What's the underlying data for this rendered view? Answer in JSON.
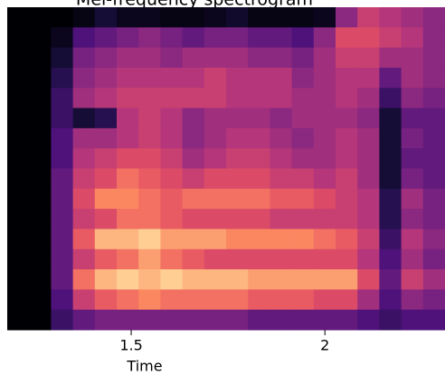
{
  "chart_data": {
    "type": "heatmap",
    "title": "Mel-frequency spectrogram",
    "xlabel": "Time",
    "xlim": [
      1.18,
      2.31
    ],
    "xticks": [
      1.5,
      2
    ],
    "colormap": "magma",
    "clim": [
      0,
      100
    ],
    "z": [
      [
        0,
        0,
        0,
        3,
        10,
        5,
        5,
        3,
        3,
        5,
        8,
        3,
        3,
        3,
        5,
        40,
        55,
        50,
        45,
        40
      ],
      [
        0,
        0,
        5,
        25,
        30,
        35,
        40,
        35,
        30,
        35,
        35,
        30,
        30,
        25,
        40,
        60,
        60,
        55,
        50,
        40
      ],
      [
        0,
        0,
        10,
        35,
        40,
        45,
        45,
        40,
        45,
        45,
        45,
        40,
        40,
        35,
        45,
        55,
        55,
        45,
        45,
        40
      ],
      [
        0,
        0,
        15,
        40,
        45,
        50,
        50,
        50,
        50,
        55,
        50,
        50,
        50,
        40,
        45,
        50,
        50,
        30,
        45,
        40
      ],
      [
        0,
        0,
        20,
        45,
        50,
        55,
        55,
        55,
        55,
        55,
        50,
        50,
        50,
        45,
        45,
        50,
        45,
        20,
        40,
        35
      ],
      [
        0,
        0,
        20,
        10,
        15,
        50,
        55,
        50,
        40,
        45,
        45,
        45,
        40,
        45,
        45,
        45,
        40,
        10,
        30,
        30
      ],
      [
        0,
        0,
        25,
        45,
        45,
        50,
        55,
        50,
        40,
        45,
        50,
        50,
        45,
        40,
        45,
        50,
        45,
        10,
        35,
        30
      ],
      [
        0,
        0,
        25,
        50,
        55,
        60,
        60,
        55,
        45,
        50,
        55,
        55,
        50,
        45,
        45,
        50,
        45,
        10,
        30,
        30
      ],
      [
        0,
        0,
        30,
        55,
        60,
        70,
        65,
        60,
        55,
        60,
        60,
        60,
        55,
        55,
        50,
        55,
        45,
        10,
        35,
        30
      ],
      [
        0,
        0,
        30,
        60,
        75,
        75,
        70,
        65,
        70,
        70,
        70,
        70,
        65,
        65,
        60,
        55,
        50,
        15,
        45,
        35
      ],
      [
        0,
        0,
        30,
        55,
        60,
        70,
        70,
        65,
        60,
        60,
        60,
        60,
        55,
        55,
        55,
        55,
        50,
        15,
        40,
        35
      ],
      [
        0,
        0,
        30,
        65,
        85,
        85,
        90,
        80,
        80,
        80,
        75,
        75,
        75,
        75,
        70,
        65,
        55,
        20,
        50,
        40
      ],
      [
        0,
        0,
        30,
        55,
        65,
        70,
        80,
        70,
        65,
        60,
        60,
        60,
        60,
        60,
        60,
        60,
        50,
        25,
        45,
        35
      ],
      [
        0,
        0,
        30,
        70,
        85,
        90,
        85,
        90,
        85,
        85,
        85,
        80,
        80,
        80,
        80,
        80,
        60,
        30,
        55,
        45
      ],
      [
        0,
        0,
        25,
        55,
        65,
        70,
        75,
        70,
        70,
        70,
        70,
        65,
        65,
        65,
        60,
        60,
        45,
        25,
        40,
        35
      ],
      [
        0,
        0,
        20,
        30,
        35,
        35,
        35,
        35,
        35,
        35,
        35,
        30,
        30,
        30,
        30,
        30,
        25,
        20,
        25,
        25
      ]
    ]
  }
}
